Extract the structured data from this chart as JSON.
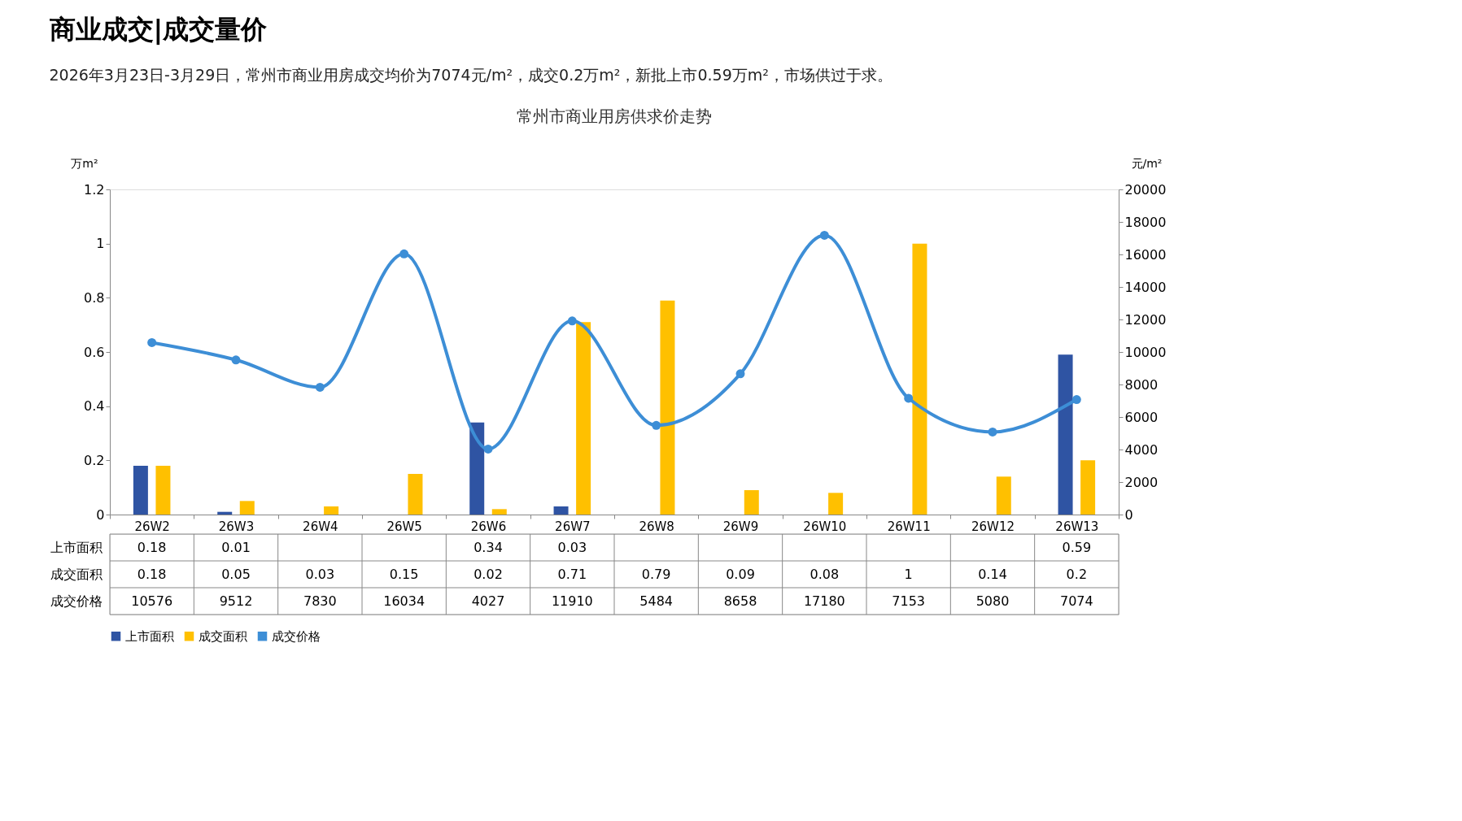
{
  "chart_data": {
    "type": "bar",
    "title": "商业成交|成交量价",
    "subtitle": "2026年3月23日-3月29日，常州市商业用房成交均价为7074元/m²，成交0.2万m²，新批上市0.59万m²，市场供过于求。",
    "annotations": [
      "常州市商业用房供求价走势"
    ],
    "ylabel": "万m²",
    "y2label": "元/m²",
    "categories": [
      "26W2",
      "26W3",
      "26W4",
      "26W5",
      "26W6",
      "26W7",
      "26W8",
      "26W9",
      "26W10",
      "26W11",
      "26W12",
      "26W13"
    ],
    "series": [
      {
        "name": "上市面积",
        "color": "#2f54a3",
        "values": [
          0.18,
          0.01,
          null,
          null,
          0.34,
          0.03,
          null,
          null,
          null,
          null,
          null,
          0.59
        ]
      },
      {
        "name": "成交面积",
        "color": "#ffc000",
        "values": [
          0.18,
          0.05,
          0.03,
          0.15,
          0.02,
          0.71,
          0.79,
          0.09,
          0.08,
          1,
          0.14,
          0.2
        ]
      },
      {
        "name": "成交价格",
        "type": "line",
        "axis": "y2",
        "color": "#3d8ed6",
        "marker": "circle",
        "values": [
          10576,
          9512,
          7830,
          16034,
          4027,
          11910,
          5484,
          8658,
          17180,
          7153,
          5080,
          7074
        ]
      }
    ],
    "ylim": [
      0,
      1.2
    ],
    "yticks": [
      0,
      0.2,
      0.4,
      0.6,
      0.8,
      1,
      1.2
    ],
    "y2lim": [
      0,
      20000
    ],
    "y2ticks": [
      0,
      2000,
      4000,
      6000,
      8000,
      10000,
      12000,
      14000,
      16000,
      18000,
      20000
    ],
    "data_labels": true,
    "grid": false,
    "legend": "bottom"
  }
}
